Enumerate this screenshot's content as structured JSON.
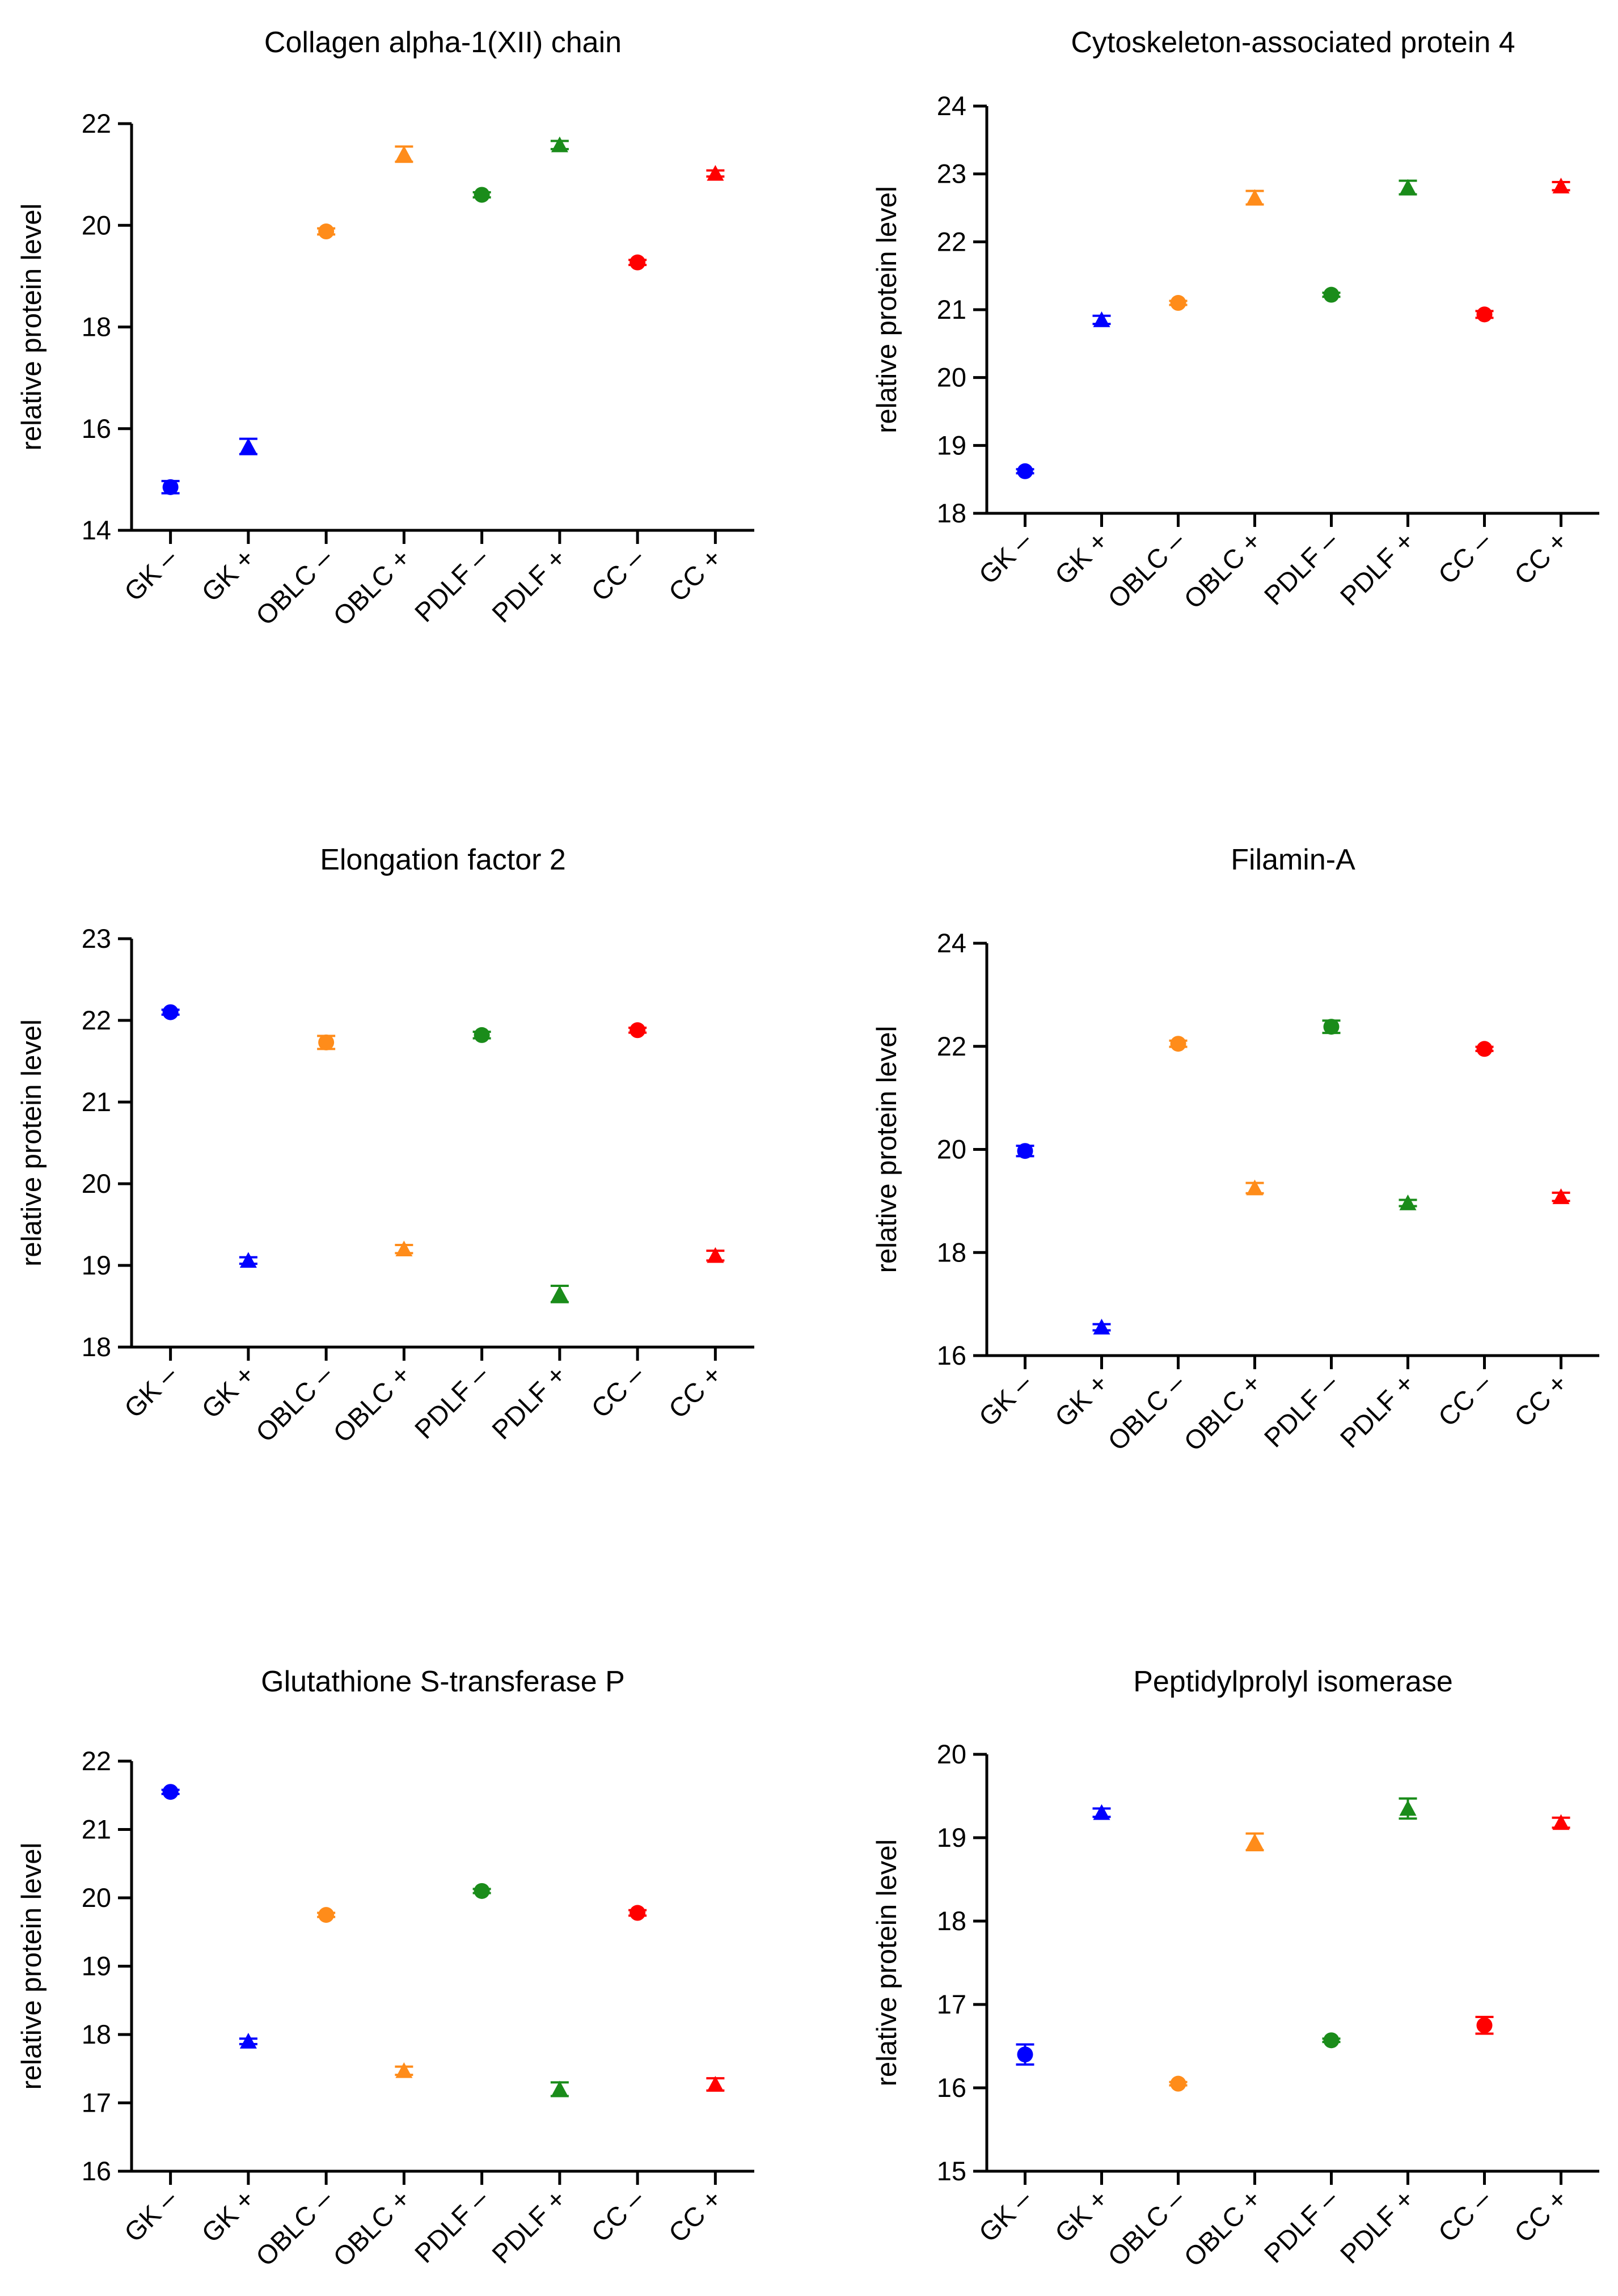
{
  "colors": {
    "GK": "#0000ff",
    "OBLC": "#ff8c1a",
    "PDLF": "#1a8c1a",
    "CC": "#ff0000",
    "axis": "#000000"
  },
  "chart_data": [
    {
      "type": "scatter",
      "title": "Collagen alpha-1(XII) chain",
      "ylabel": "relative protein level",
      "ylim": [
        14,
        22
      ],
      "yticks": [
        14,
        16,
        18,
        20,
        22
      ],
      "categories": [
        "GK –",
        "GK +",
        "OBLC –",
        "OBLC +",
        "PDLF –",
        "PDLF +",
        "CC –",
        "CC +"
      ],
      "values": [
        14.85,
        15.65,
        19.88,
        21.4,
        20.6,
        21.58,
        19.27,
        21.02
      ],
      "errors": [
        0.12,
        0.15,
        0.06,
        0.15,
        0.05,
        0.08,
        0.05,
        0.06
      ]
    },
    {
      "type": "scatter",
      "title": "Cytoskeleton-associated protein 4",
      "ylabel": "relative protein level",
      "ylim": [
        18,
        24
      ],
      "yticks": [
        18,
        19,
        20,
        21,
        22,
        23,
        24
      ],
      "categories": [
        "GK –",
        "GK +",
        "OBLC –",
        "OBLC +",
        "PDLF –",
        "PDLF +",
        "CC –",
        "CC +"
      ],
      "values": [
        18.62,
        20.85,
        21.1,
        22.65,
        21.22,
        22.8,
        20.93,
        22.82
      ],
      "errors": [
        0.03,
        0.06,
        0.03,
        0.1,
        0.03,
        0.1,
        0.05,
        0.06
      ]
    },
    {
      "type": "scatter",
      "title": "Elongation factor 2",
      "ylabel": "relative protein level",
      "ylim": [
        18,
        23
      ],
      "yticks": [
        18,
        19,
        20,
        21,
        22,
        23
      ],
      "categories": [
        "GK –",
        "GK +",
        "OBLC –",
        "OBLC +",
        "PDLF –",
        "PDLF +",
        "CC –",
        "CC +"
      ],
      "values": [
        22.1,
        19.06,
        21.73,
        19.2,
        21.82,
        18.65,
        21.88,
        19.12
      ],
      "errors": [
        0.03,
        0.04,
        0.08,
        0.05,
        0.04,
        0.1,
        0.03,
        0.06
      ]
    },
    {
      "type": "scatter",
      "title": "Filamin-A",
      "ylabel": "relative protein level",
      "ylim": [
        16,
        24
      ],
      "yticks": [
        16,
        18,
        20,
        22,
        24
      ],
      "categories": [
        "GK –",
        "GK +",
        "OBLC –",
        "OBLC +",
        "PDLF –",
        "PDLF +",
        "CC –",
        "CC +"
      ],
      "values": [
        19.97,
        16.55,
        22.05,
        19.25,
        22.38,
        18.96,
        21.95,
        19.08
      ],
      "errors": [
        0.1,
        0.06,
        0.06,
        0.1,
        0.12,
        0.06,
        0.04,
        0.08
      ]
    },
    {
      "type": "scatter",
      "title": "Glutathione S-transferase P",
      "ylabel": "relative protein level",
      "ylim": [
        16,
        22
      ],
      "yticks": [
        16,
        17,
        18,
        19,
        20,
        21,
        22
      ],
      "categories": [
        "GK –",
        "GK +",
        "OBLC –",
        "OBLC +",
        "PDLF –",
        "PDLF +",
        "CC –",
        "CC +"
      ],
      "values": [
        21.55,
        17.9,
        19.75,
        17.47,
        20.1,
        17.2,
        19.78,
        17.27
      ],
      "errors": [
        0.03,
        0.04,
        0.03,
        0.06,
        0.03,
        0.1,
        0.04,
        0.09
      ]
    },
    {
      "type": "scatter",
      "title": "Peptidylprolyl isomerase",
      "ylabel": "relative protein level",
      "ylim": [
        15,
        20
      ],
      "yticks": [
        15,
        16,
        17,
        18,
        19,
        20
      ],
      "categories": [
        "GK –",
        "GK +",
        "OBLC –",
        "OBLC +",
        "PDLF –",
        "PDLF +",
        "CC –",
        "CC +"
      ],
      "values": [
        16.4,
        19.3,
        16.05,
        18.95,
        16.57,
        19.35,
        16.75,
        19.18
      ],
      "errors": [
        0.12,
        0.05,
        0.02,
        0.1,
        0.02,
        0.12,
        0.1,
        0.06
      ]
    }
  ]
}
